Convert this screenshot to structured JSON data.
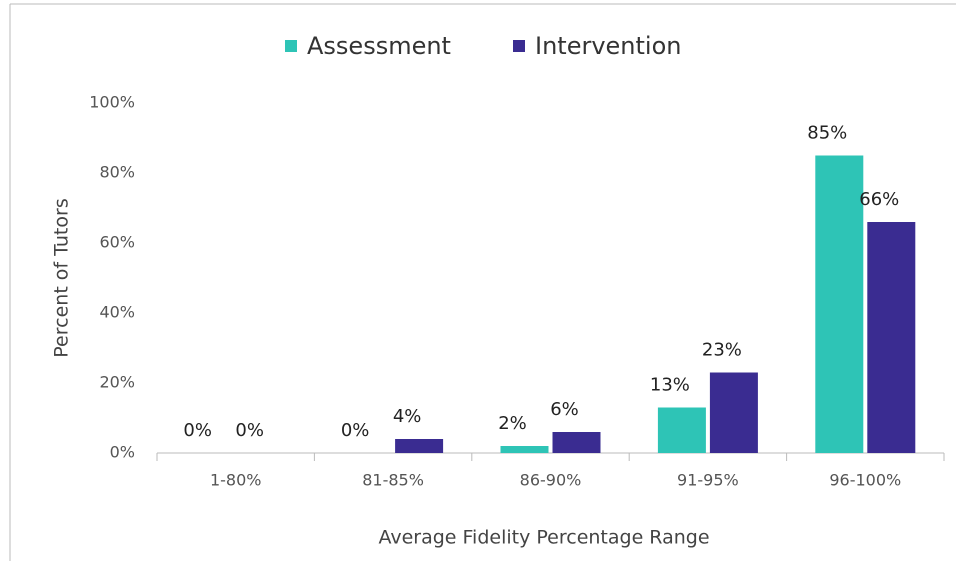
{
  "chart_data": {
    "type": "bar",
    "categories": [
      "1-80%",
      "81-85%",
      "86-90%",
      "91-95%",
      "96-100%"
    ],
    "series": [
      {
        "name": "Assessment",
        "color": "#2ec4b6",
        "values": [
          0,
          0,
          2,
          13,
          85
        ],
        "value_labels": [
          "0%",
          "0%",
          "2%",
          "13%",
          "85%"
        ]
      },
      {
        "name": "Intervention",
        "color": "#3a2c91",
        "values": [
          0,
          4,
          6,
          23,
          66
        ],
        "value_labels": [
          "0%",
          "4%",
          "6%",
          "23%",
          "66%"
        ]
      }
    ],
    "x_label": "Average Fidelity Percentage Range",
    "y_label": "Percent of Tutors",
    "ylim": [
      0,
      100
    ],
    "yticks": [
      {
        "value": 0,
        "label": "0%"
      },
      {
        "value": 20,
        "label": "20%"
      },
      {
        "value": 40,
        "label": "40%"
      },
      {
        "value": 60,
        "label": "60%"
      },
      {
        "value": 80,
        "label": "80%"
      },
      {
        "value": 100,
        "label": "100%"
      }
    ],
    "legend": "top"
  }
}
